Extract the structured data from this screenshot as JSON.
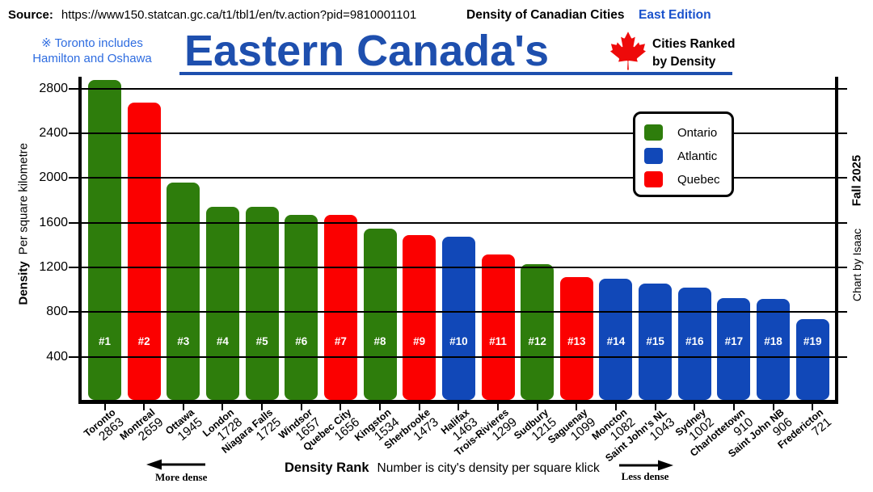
{
  "header": {
    "source_label": "Source:",
    "source_url": "https://www150.statcan.gc.ca/t1/tbl1/en/tv.action?pid=9810001101",
    "series_title": "Density of Canadian Cities",
    "edition": "East Edition",
    "note_line1": "※ Toronto includes",
    "note_line2": "Hamilton and Oshawa",
    "title": "Eastern Canada's",
    "subtitle_line1": "Cities Ranked",
    "subtitle_line2": "by Density"
  },
  "side": {
    "season": "Fall 2025",
    "credit": "Chart by Isaac"
  },
  "legend": {
    "items": [
      {
        "label": "Ontario",
        "color": "#2e7d0c"
      },
      {
        "label": "Atlantic",
        "color": "#1148b8"
      },
      {
        "label": "Quebec",
        "color": "#fb0000"
      }
    ]
  },
  "axes": {
    "y_label_bold": "Density",
    "y_label_rest": "Per square kilometre",
    "x_label_bold": "Density Rank",
    "x_label_rest": "Number is city's density per square klick",
    "more_dense": "More dense",
    "less_dense": "Less dense"
  },
  "colors": {
    "title_blue": "#1e4fae",
    "note_blue": "#2e6ce0",
    "edition_blue": "#1a52cc",
    "maple_red": "#ee0a0a"
  },
  "chart_data": {
    "type": "bar",
    "title": "Eastern Canada's Cities Ranked by Density",
    "xlabel": "Density Rank",
    "ylabel": "Density per square kilometre",
    "ylim": [
      0,
      2900
    ],
    "yticks": [
      400,
      800,
      1200,
      1600,
      2000,
      2400,
      2800
    ],
    "grid": true,
    "legend_position": "upper right",
    "region_colors": {
      "Ontario": "#2e7d0c",
      "Atlantic": "#1148b8",
      "Quebec": "#fb0000"
    },
    "categories": [
      "Toronto",
      "Montreal",
      "Ottawa",
      "London",
      "Niagara Falls",
      "Windsor",
      "Quebec City",
      "Kingston",
      "Sherbrooke",
      "Halifax",
      "Trois-Rivieres",
      "Sudbury",
      "Saguenay",
      "Moncton",
      "Saint John's NL",
      "Sydney",
      "Charlottetown",
      "Saint John NB",
      "Fredericton"
    ],
    "values": [
      2863,
      2659,
      1945,
      1728,
      1725,
      1657,
      1656,
      1534,
      1473,
      1463,
      1299,
      1215,
      1099,
      1082,
      1043,
      1002,
      910,
      906,
      721
    ],
    "points": [
      {
        "rank": "#1",
        "city": "Toronto",
        "density": 2863,
        "region": "Ontario"
      },
      {
        "rank": "#2",
        "city": "Montreal",
        "density": 2659,
        "region": "Quebec"
      },
      {
        "rank": "#3",
        "city": "Ottawa",
        "density": 1945,
        "region": "Ontario"
      },
      {
        "rank": "#4",
        "city": "London",
        "density": 1728,
        "region": "Ontario"
      },
      {
        "rank": "#5",
        "city": "Niagara Falls",
        "density": 1725,
        "region": "Ontario"
      },
      {
        "rank": "#6",
        "city": "Windsor",
        "density": 1657,
        "region": "Ontario"
      },
      {
        "rank": "#7",
        "city": "Quebec City",
        "density": 1656,
        "region": "Quebec"
      },
      {
        "rank": "#8",
        "city": "Kingston",
        "density": 1534,
        "region": "Ontario"
      },
      {
        "rank": "#9",
        "city": "Sherbrooke",
        "density": 1473,
        "region": "Quebec"
      },
      {
        "rank": "#10",
        "city": "Halifax",
        "density": 1463,
        "region": "Atlantic"
      },
      {
        "rank": "#11",
        "city": "Trois-Rivieres",
        "density": 1299,
        "region": "Quebec"
      },
      {
        "rank": "#12",
        "city": "Sudbury",
        "density": 1215,
        "region": "Ontario"
      },
      {
        "rank": "#13",
        "city": "Saguenay",
        "density": 1099,
        "region": "Quebec"
      },
      {
        "rank": "#14",
        "city": "Moncton",
        "density": 1082,
        "region": "Atlantic"
      },
      {
        "rank": "#15",
        "city": "Saint John's NL",
        "density": 1043,
        "region": "Atlantic"
      },
      {
        "rank": "#16",
        "city": "Sydney",
        "density": 1002,
        "region": "Atlantic"
      },
      {
        "rank": "#17",
        "city": "Charlottetown",
        "density": 910,
        "region": "Atlantic"
      },
      {
        "rank": "#18",
        "city": "Saint John NB",
        "density": 906,
        "region": "Atlantic"
      },
      {
        "rank": "#19",
        "city": "Fredericton",
        "density": 721,
        "region": "Atlantic"
      }
    ]
  }
}
